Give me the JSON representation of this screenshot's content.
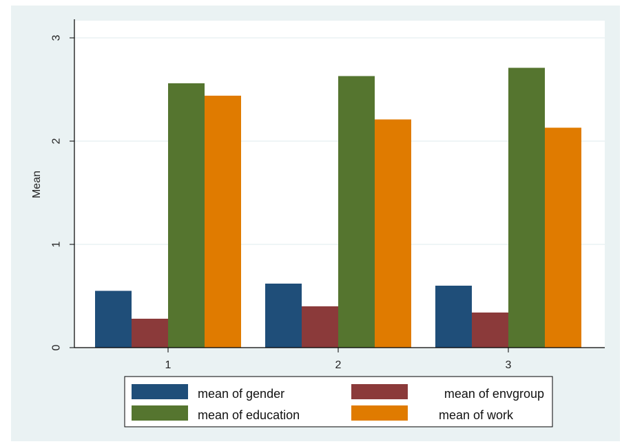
{
  "chart_data": {
    "type": "bar",
    "title": "",
    "xlabel": "",
    "ylabel": "Mean",
    "ylim": [
      0,
      3
    ],
    "yticks": [
      "0",
      "1",
      "2",
      "3"
    ],
    "categories": [
      "1",
      "2",
      "3"
    ],
    "series": [
      {
        "name": "mean of gender",
        "color": "#1f4e79",
        "values": [
          0.55,
          0.62,
          0.6
        ]
      },
      {
        "name": "mean of envgroup",
        "color": "#8b3a3a",
        "values": [
          0.28,
          0.4,
          0.34
        ]
      },
      {
        "name": "mean of education",
        "color": "#55752f",
        "values": [
          2.56,
          2.63,
          2.71
        ]
      },
      {
        "name": "mean of work",
        "color": "#e07b00",
        "values": [
          2.44,
          2.21,
          2.13
        ]
      }
    ],
    "grid": true,
    "legend_position": "bottom",
    "colors": {
      "outer_background": "#eaf2f3",
      "plot_background": "#ffffff",
      "gridline": "#eaf2f3",
      "axis": "#000000"
    }
  }
}
